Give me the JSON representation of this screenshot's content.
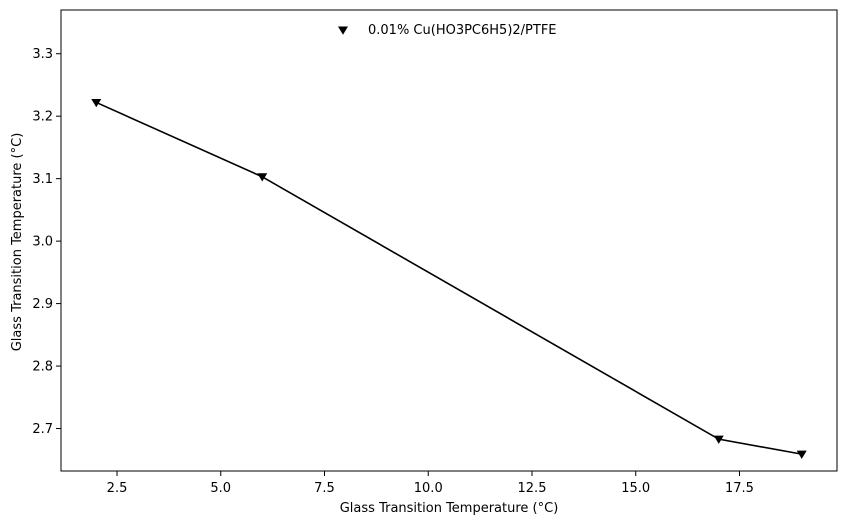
{
  "chart_data": {
    "type": "line",
    "title": "",
    "xlabel": "Glass Transition Temperature (°C)",
    "ylabel": "Glass Transition Temperature (°C)",
    "xlim": [
      1.15,
      19.85
    ],
    "ylim": [
      2.632,
      3.37
    ],
    "x_ticks": [
      2.5,
      5.0,
      7.5,
      10.0,
      12.5,
      15.0,
      17.5
    ],
    "x_tick_labels": [
      "2.5",
      "5.0",
      "7.5",
      "10.0",
      "12.5",
      "15.0",
      "17.5"
    ],
    "y_ticks": [
      2.7,
      2.8,
      2.9,
      3.0,
      3.1,
      3.2,
      3.3
    ],
    "y_tick_labels": [
      "2.7",
      "2.8",
      "2.9",
      "3.0",
      "3.1",
      "3.2",
      "3.3"
    ],
    "grid": false,
    "legend_position": "upper center",
    "series": [
      {
        "name": "0.01% Cu(HO3PC6H5)2/PTFE",
        "marker": "triangle-down",
        "color": "#000000",
        "x": [
          2,
          6,
          17,
          19
        ],
        "y": [
          3.222,
          3.103,
          2.683,
          2.659
        ]
      }
    ]
  }
}
